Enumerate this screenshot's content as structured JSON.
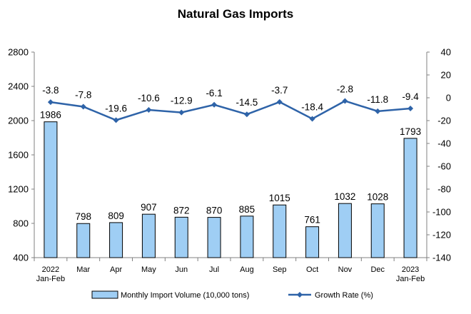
{
  "chart_data": {
    "type": "bar",
    "title": "Natural Gas Imports",
    "categories": [
      [
        "2022",
        "Jan-Feb"
      ],
      [
        "Mar"
      ],
      [
        "Apr"
      ],
      [
        "May"
      ],
      [
        "Jun"
      ],
      [
        "Jul"
      ],
      [
        "Aug"
      ],
      [
        "Sep"
      ],
      [
        "Oct"
      ],
      [
        "Nov"
      ],
      [
        "Dec"
      ],
      [
        "2023",
        "Jan-Feb"
      ]
    ],
    "series": [
      {
        "name": "Monthly Import Volume (10,000 tons)",
        "type": "bar",
        "axis": "left",
        "values": [
          1986,
          798,
          809,
          907,
          872,
          870,
          885,
          1015,
          761,
          1032,
          1028,
          1793
        ],
        "labels": [
          "1986",
          "798",
          "809",
          "907",
          "872",
          "870",
          "885",
          "1015",
          "761",
          "1032",
          "1028",
          "1793"
        ]
      },
      {
        "name": "Growth Rate (%)",
        "type": "line",
        "axis": "right",
        "values": [
          -3.8,
          -7.8,
          -19.6,
          -10.6,
          -12.9,
          -6.1,
          -14.5,
          -3.7,
          -18.4,
          -2.8,
          -11.8,
          -9.4
        ],
        "labels": [
          "-3.8",
          "-7.8",
          "-19.6",
          "-10.6",
          "-12.9",
          "-6.1",
          "-14.5",
          "-3.7",
          "-18.4",
          "-2.8",
          "-11.8",
          "-9.4"
        ]
      }
    ],
    "y_left": {
      "min": 400,
      "max": 2800,
      "ticks": [
        400,
        800,
        1200,
        1600,
        2000,
        2400,
        2800
      ]
    },
    "y_right": {
      "min": -140,
      "max": 40,
      "ticks": [
        40,
        20,
        0,
        -20,
        -40,
        -60,
        -80,
        -100,
        -120,
        -140
      ]
    },
    "grid": false,
    "legend_position": "bottom",
    "colors": {
      "bar_fill": "#9fcef4",
      "bar_stroke": "#000000",
      "line": "#2e63a8",
      "axis": "#808080"
    }
  }
}
